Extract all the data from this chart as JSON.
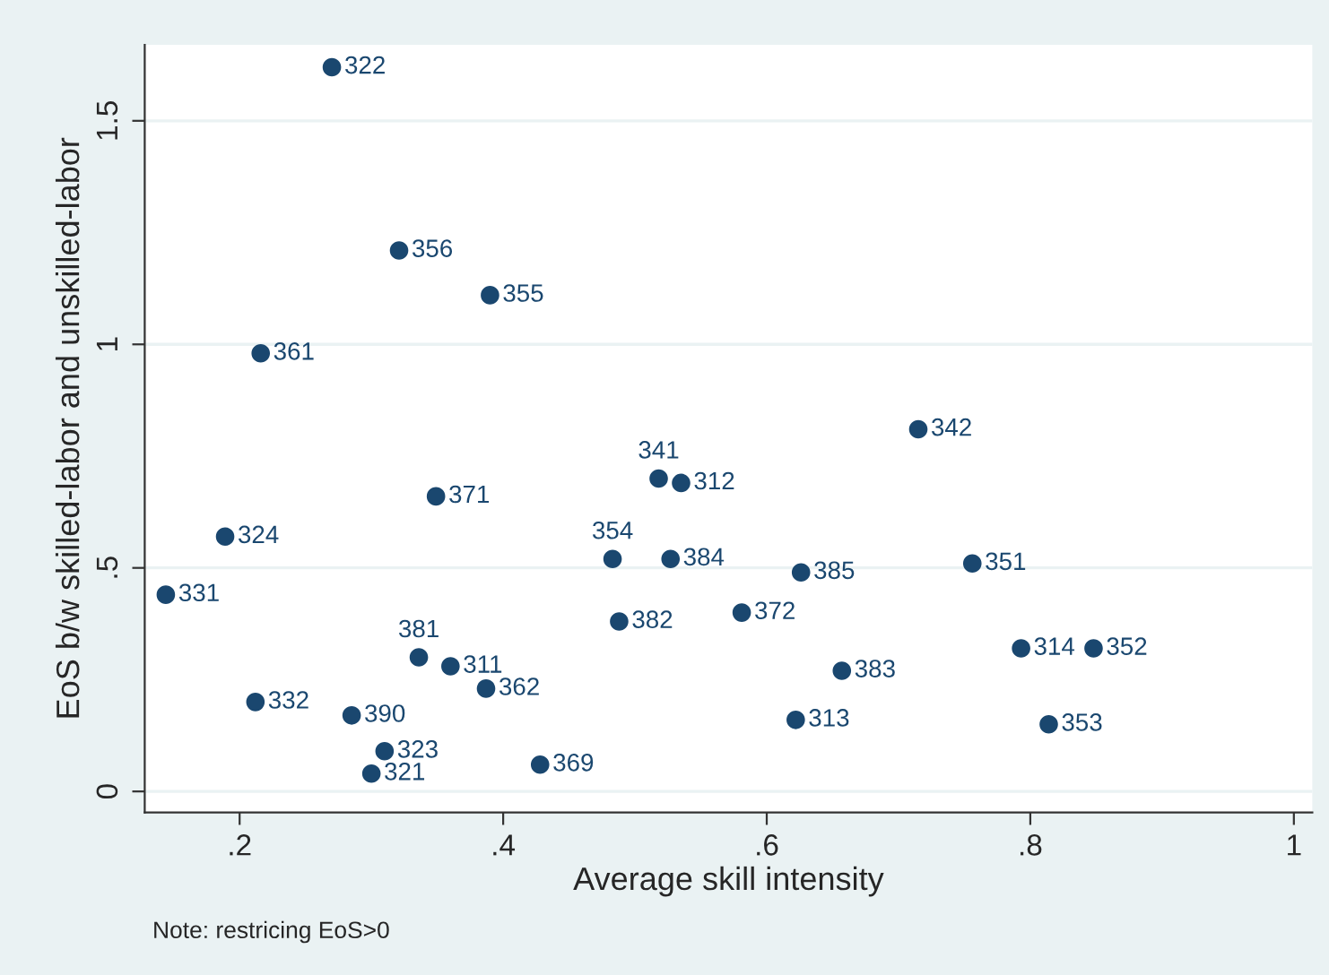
{
  "chart_data": {
    "type": "scatter",
    "xlabel": "Average skill intensity",
    "ylabel": "EoS b/w skilled-labor and unskilled-labor",
    "x": [
      0.27,
      0.321,
      0.39,
      0.216,
      0.349,
      0.189,
      0.144,
      0.212,
      0.285,
      0.31,
      0.3,
      0.336,
      0.36,
      0.387,
      0.428,
      0.715,
      0.518,
      0.535,
      0.483,
      0.527,
      0.626,
      0.756,
      0.488,
      0.581,
      0.793,
      0.848,
      0.657,
      0.622,
      0.814
    ],
    "values": [
      1.62,
      1.21,
      1.11,
      0.98,
      0.66,
      0.57,
      0.44,
      0.2,
      0.17,
      0.09,
      0.04,
      0.3,
      0.28,
      0.23,
      0.06,
      0.81,
      0.7,
      0.69,
      0.52,
      0.52,
      0.49,
      0.51,
      0.38,
      0.4,
      0.32,
      0.32,
      0.27,
      0.16,
      0.15
    ],
    "color": "#1a476f",
    "marker": "circle",
    "xlim": [
      0.128,
      1.014
    ],
    "ylim": [
      -0.047,
      1.67
    ],
    "xticks": [
      {
        "value": 0.2,
        "label": ".2"
      },
      {
        "value": 0.4,
        "label": ".4"
      },
      {
        "value": 0.6,
        "label": ".6"
      },
      {
        "value": 0.8,
        "label": ".8"
      },
      1
    ],
    "yticks": [
      0,
      {
        "value": 0.5,
        "label": ".5"
      },
      1,
      1.5
    ],
    "grid": "y",
    "annotations": [
      "Note: restricing EoS>0",
      {
        "text": "322",
        "x": 0.27,
        "y": 1.62
      },
      {
        "text": "356",
        "x": 0.321,
        "y": 1.21
      },
      {
        "text": "355",
        "x": 0.39,
        "y": 1.11
      },
      {
        "text": "361",
        "x": 0.216,
        "y": 0.98
      },
      {
        "text": "371",
        "x": 0.349,
        "y": 0.66
      },
      {
        "text": "324",
        "x": 0.189,
        "y": 0.57
      },
      {
        "text": "331",
        "x": 0.144,
        "y": 0.44
      },
      {
        "text": "332",
        "x": 0.212,
        "y": 0.2
      },
      {
        "text": "390",
        "x": 0.285,
        "y": 0.17
      },
      {
        "text": "323",
        "x": 0.31,
        "y": 0.09
      },
      {
        "text": "321",
        "x": 0.3,
        "y": 0.04
      },
      {
        "text": "381",
        "x": 0.336,
        "y": 0.3
      },
      {
        "text": "311",
        "x": 0.36,
        "y": 0.28
      },
      {
        "text": "362",
        "x": 0.387,
        "y": 0.23
      },
      {
        "text": "369",
        "x": 0.428,
        "y": 0.06
      },
      {
        "text": "342",
        "x": 0.715,
        "y": 0.81
      },
      {
        "text": "341",
        "x": 0.518,
        "y": 0.7
      },
      {
        "text": "312",
        "x": 0.535,
        "y": 0.69
      },
      {
        "text": "354",
        "x": 0.483,
        "y": 0.52
      },
      {
        "text": "384",
        "x": 0.527,
        "y": 0.52
      },
      {
        "text": "385",
        "x": 0.626,
        "y": 0.49
      },
      {
        "text": "351",
        "x": 0.756,
        "y": 0.51
      },
      {
        "text": "382",
        "x": 0.488,
        "y": 0.38
      },
      {
        "text": "372",
        "x": 0.581,
        "y": 0.4
      },
      {
        "text": "314",
        "x": 0.793,
        "y": 0.32
      },
      {
        "text": "352",
        "x": 0.848,
        "y": 0.32
      },
      {
        "text": "383",
        "x": 0.657,
        "y": 0.27
      },
      {
        "text": "313",
        "x": 0.622,
        "y": 0.16
      },
      {
        "text": "353",
        "x": 0.814,
        "y": 0.15
      }
    ]
  }
}
